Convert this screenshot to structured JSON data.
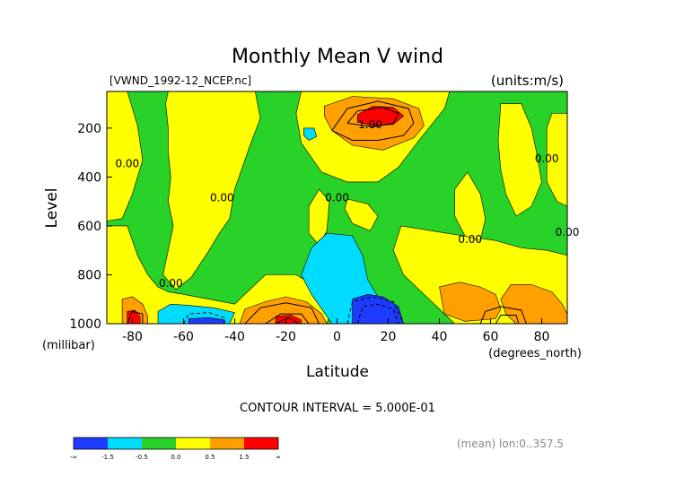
{
  "chart_data": {
    "type": "heatmap",
    "title": "Monthly Mean V wind",
    "file_label": "[VWND_1992-12_NCEP.nc]",
    "units_label": "(units:m/s)",
    "xlabel": "Latitude",
    "xunit": "(degrees_north)",
    "ylabel": "Level",
    "yunit": "(millibar)",
    "xlim": [
      -90,
      90
    ],
    "ylim": [
      1000,
      50
    ],
    "x_ticks": [
      -80,
      -60,
      -40,
      -20,
      0,
      20,
      40,
      60,
      80
    ],
    "y_ticks": [
      200,
      400,
      600,
      800,
      1000
    ],
    "contour_interval_text": "CONTOUR INTERVAL = 5.000E-01",
    "mean_text": "(mean) lon:0..357.5",
    "contour_labels": [
      {
        "text": "1.00",
        "lat": 13,
        "level": 200
      },
      {
        "text": "0.00",
        "lat": -82,
        "level": 360
      },
      {
        "text": "0.00",
        "lat": -45,
        "level": 500
      },
      {
        "text": "0.00",
        "lat": 0,
        "level": 500
      },
      {
        "text": "0.00",
        "lat": 82,
        "level": 340
      },
      {
        "text": "0.00",
        "lat": 52,
        "level": 670
      },
      {
        "text": "0.00",
        "lat": 90,
        "level": 640
      },
      {
        "text": "0.00",
        "lat": -65,
        "level": 850
      }
    ],
    "colorbar": {
      "colors": [
        "#1e3cff",
        "#00dcff",
        "#28d228",
        "#ffff00",
        "#ffa000",
        "#ff0000"
      ],
      "tick_labels": [
        "-∞",
        "-1.5",
        "-0.5",
        "0.0",
        "0.5",
        "1.5",
        "∞"
      ]
    },
    "regions": [
      {
        "bin": 2,
        "points": [
          [
            -90,
            50
          ],
          [
            90,
            50
          ],
          [
            90,
            1000
          ],
          [
            -90,
            1000
          ]
        ]
      },
      {
        "bin": 3,
        "points": [
          [
            -90,
            50
          ],
          [
            -82,
            50
          ],
          [
            -78,
            190
          ],
          [
            -76,
            330
          ],
          [
            -80,
            470
          ],
          [
            -84,
            570
          ],
          [
            -90,
            580
          ]
        ]
      },
      {
        "bin": 3,
        "points": [
          [
            -66,
            50
          ],
          [
            -32,
            50
          ],
          [
            -30,
            160
          ],
          [
            -34,
            270
          ],
          [
            -40,
            450
          ],
          [
            -42,
            570
          ],
          [
            -46,
            630
          ],
          [
            -50,
            700
          ],
          [
            -57,
            810
          ],
          [
            -63,
            860
          ],
          [
            -68,
            800
          ],
          [
            -66,
            700
          ],
          [
            -64,
            600
          ],
          [
            -66,
            500
          ],
          [
            -65,
            400
          ],
          [
            -66,
            300
          ],
          [
            -66,
            200
          ],
          [
            -67,
            100
          ]
        ]
      },
      {
        "bin": 3,
        "points": [
          [
            -90,
            600
          ],
          [
            -82,
            600
          ],
          [
            -78,
            720
          ],
          [
            -74,
            800
          ],
          [
            -70,
            850
          ],
          [
            -66,
            870
          ],
          [
            -60,
            880
          ],
          [
            -50,
            900
          ],
          [
            -40,
            920
          ],
          [
            -36,
            880
          ],
          [
            -28,
            800
          ],
          [
            -16,
            800
          ],
          [
            -8,
            850
          ],
          [
            -2,
            940
          ],
          [
            -4,
            1000
          ],
          [
            -90,
            1000
          ]
        ]
      },
      {
        "bin": 3,
        "points": [
          [
            -14,
            50
          ],
          [
            44,
            50
          ],
          [
            42,
            120
          ],
          [
            32,
            250
          ],
          [
            24,
            360
          ],
          [
            16,
            420
          ],
          [
            4,
            420
          ],
          [
            -6,
            380
          ],
          [
            -14,
            260
          ],
          [
            -16,
            140
          ]
        ]
      },
      {
        "bin": 3,
        "points": [
          [
            -7,
            450
          ],
          [
            -3,
            500
          ],
          [
            -4,
            620
          ],
          [
            -7,
            680
          ],
          [
            -11,
            630
          ],
          [
            -11,
            520
          ]
        ]
      },
      {
        "bin": 3,
        "points": [
          [
            4,
            490
          ],
          [
            12,
            510
          ],
          [
            16,
            560
          ],
          [
            13,
            620
          ],
          [
            6,
            590
          ],
          [
            3,
            530
          ]
        ]
      },
      {
        "bin": 3,
        "points": [
          [
            25,
            600
          ],
          [
            37,
            620
          ],
          [
            49,
            640
          ],
          [
            62,
            660
          ],
          [
            72,
            690
          ],
          [
            82,
            700
          ],
          [
            90,
            720
          ],
          [
            90,
            1000
          ],
          [
            46,
            1000
          ],
          [
            42,
            960
          ],
          [
            36,
            900
          ],
          [
            26,
            800
          ],
          [
            22,
            700
          ]
        ]
      },
      {
        "bin": 3,
        "points": [
          [
            51,
            380
          ],
          [
            56,
            470
          ],
          [
            58,
            570
          ],
          [
            56,
            660
          ],
          [
            50,
            640
          ],
          [
            46,
            560
          ],
          [
            46,
            450
          ]
        ]
      },
      {
        "bin": 3,
        "points": [
          [
            64,
            100
          ],
          [
            72,
            100
          ],
          [
            76,
            200
          ],
          [
            78,
            300
          ],
          [
            80,
            420
          ],
          [
            76,
            520
          ],
          [
            70,
            560
          ],
          [
            66,
            470
          ],
          [
            64,
            370
          ],
          [
            63,
            250
          ]
        ]
      },
      {
        "bin": 3,
        "points": [
          [
            84,
            140
          ],
          [
            90,
            140
          ],
          [
            90,
            520
          ],
          [
            86,
            500
          ],
          [
            82,
            420
          ],
          [
            82,
            300
          ],
          [
            82,
            200
          ]
        ]
      },
      {
        "bin": 1,
        "points": [
          [
            -4,
            630
          ],
          [
            6,
            640
          ],
          [
            10,
            720
          ],
          [
            12,
            820
          ],
          [
            16,
            890
          ],
          [
            14,
            1000
          ],
          [
            -2,
            1000
          ],
          [
            -6,
            940
          ],
          [
            -10,
            880
          ],
          [
            -14,
            800
          ],
          [
            -10,
            690
          ]
        ]
      },
      {
        "bin": 1,
        "points": [
          [
            -13,
            200
          ],
          [
            -9,
            200
          ],
          [
            -8,
            235
          ],
          [
            -11,
            250
          ],
          [
            -13,
            230
          ]
        ]
      },
      {
        "bin": 1,
        "points": [
          [
            -70,
            950
          ],
          [
            -65,
            920
          ],
          [
            -58,
            925
          ],
          [
            -48,
            935
          ],
          [
            -40,
            955
          ],
          [
            -42,
            1000
          ],
          [
            -70,
            1000
          ]
        ]
      },
      {
        "bin": 0,
        "points": [
          [
            -58,
            980
          ],
          [
            -50,
            975
          ],
          [
            -44,
            985
          ],
          [
            -44,
            1000
          ],
          [
            -58,
            1000
          ]
        ]
      },
      {
        "bin": 0,
        "points": [
          [
            6,
            900
          ],
          [
            12,
            880
          ],
          [
            18,
            890
          ],
          [
            24,
            930
          ],
          [
            26,
            1000
          ],
          [
            6,
            1000
          ]
        ]
      },
      {
        "bin": 4,
        "points": [
          [
            -5,
            110
          ],
          [
            6,
            70
          ],
          [
            22,
            80
          ],
          [
            32,
            120
          ],
          [
            34,
            190
          ],
          [
            30,
            240
          ],
          [
            18,
            290
          ],
          [
            6,
            270
          ],
          [
            -2,
            210
          ],
          [
            -5,
            150
          ]
        ]
      },
      {
        "bin": 5,
        "points": [
          [
            8,
            145
          ],
          [
            14,
            110
          ],
          [
            22,
            115
          ],
          [
            26,
            150
          ],
          [
            22,
            185
          ],
          [
            14,
            190
          ],
          [
            8,
            175
          ]
        ]
      },
      {
        "bin": 4,
        "points": [
          [
            -84,
            900
          ],
          [
            -80,
            890
          ],
          [
            -76,
            920
          ],
          [
            -74,
            970
          ],
          [
            -74,
            1000
          ],
          [
            -84,
            1000
          ]
        ]
      },
      {
        "bin": 5,
        "points": [
          [
            -82,
            950
          ],
          [
            -79,
            945
          ],
          [
            -77,
            970
          ],
          [
            -77,
            1000
          ],
          [
            -82,
            1000
          ]
        ]
      },
      {
        "bin": 4,
        "points": [
          [
            -36,
            940
          ],
          [
            -28,
            910
          ],
          [
            -20,
            890
          ],
          [
            -12,
            910
          ],
          [
            -6,
            960
          ],
          [
            -4,
            1000
          ],
          [
            -38,
            1000
          ]
        ]
      },
      {
        "bin": 5,
        "points": [
          [
            -24,
            970
          ],
          [
            -18,
            965
          ],
          [
            -14,
            985
          ],
          [
            -14,
            1000
          ],
          [
            -24,
            1000
          ]
        ]
      },
      {
        "bin": 4,
        "points": [
          [
            40,
            850
          ],
          [
            48,
            830
          ],
          [
            56,
            850
          ],
          [
            62,
            880
          ],
          [
            64,
            940
          ],
          [
            62,
            980
          ],
          [
            50,
            990
          ],
          [
            42,
            960
          ]
        ]
      },
      {
        "bin": 4,
        "points": [
          [
            68,
            840
          ],
          [
            76,
            840
          ],
          [
            84,
            870
          ],
          [
            88,
            920
          ],
          [
            90,
            960
          ],
          [
            90,
            1000
          ],
          [
            70,
            1000
          ],
          [
            66,
            960
          ],
          [
            64,
            900
          ]
        ]
      }
    ],
    "contour_lines": [
      [
        [
          -2,
          210
        ],
        [
          4,
          120
        ],
        [
          16,
          90
        ],
        [
          28,
          120
        ],
        [
          30,
          180
        ],
        [
          26,
          230
        ],
        [
          16,
          250
        ],
        [
          6,
          250
        ],
        [
          -2,
          210
        ]
      ],
      [
        [
          4,
          180
        ],
        [
          8,
          130
        ],
        [
          18,
          115
        ],
        [
          24,
          140
        ],
        [
          22,
          180
        ],
        [
          14,
          195
        ],
        [
          4,
          180
        ]
      ],
      [
        [
          -36,
          1000
        ],
        [
          -30,
          935
        ],
        [
          -20,
          915
        ],
        [
          -10,
          935
        ],
        [
          -7,
          1000
        ]
      ],
      [
        [
          -28,
          1000
        ],
        [
          -22,
          960
        ],
        [
          -14,
          960
        ],
        [
          -11,
          1000
        ]
      ],
      [
        [
          -24,
          1000
        ],
        [
          -19,
          975
        ],
        [
          -15,
          1000
        ]
      ],
      [
        [
          -82,
          1000
        ],
        [
          -80,
          950
        ],
        [
          -76,
          960
        ],
        [
          -76,
          1000
        ]
      ],
      [
        [
          56,
          1000
        ],
        [
          58,
          950
        ],
        [
          64,
          930
        ],
        [
          72,
          945
        ],
        [
          74,
          1000
        ]
      ],
      [
        [
          62,
          1000
        ],
        [
          64,
          965
        ],
        [
          70,
          965
        ],
        [
          71,
          1000
        ]
      ]
    ],
    "dashed_lines": [
      [
        [
          -60,
          1000
        ],
        [
          -58,
          960
        ],
        [
          -50,
          955
        ],
        [
          -44,
          975
        ],
        [
          -44,
          1000
        ]
      ],
      [
        [
          4,
          1000
        ],
        [
          6,
          910
        ],
        [
          14,
          890
        ],
        [
          22,
          910
        ],
        [
          26,
          1000
        ]
      ],
      [
        [
          8,
          1000
        ],
        [
          10,
          930
        ],
        [
          16,
          920
        ],
        [
          22,
          940
        ],
        [
          24,
          1000
        ]
      ]
    ]
  }
}
